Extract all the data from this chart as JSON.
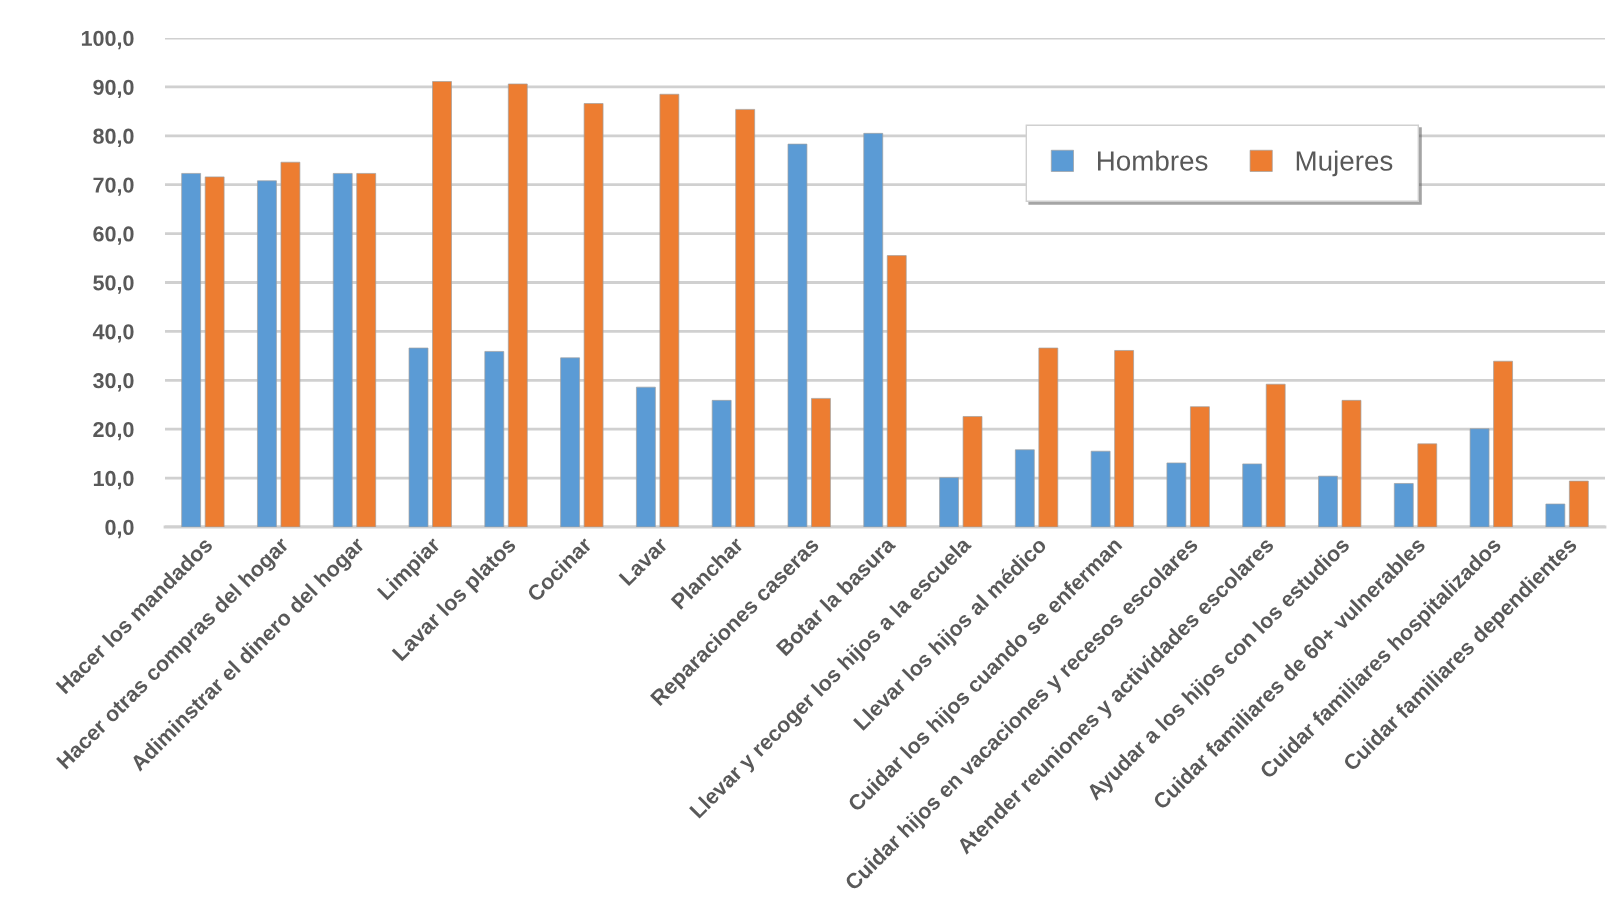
{
  "chart_data": {
    "type": "bar",
    "categories": [
      "Hacer los mandados",
      "Hacer otras compras del hogar",
      "Adiminstrar el dinero del hogar",
      "Limpiar",
      "Lavar los platos",
      "Cocinar",
      "Lavar",
      "Planchar",
      "Reparaciones caseras",
      "Botar la basura",
      "Llevar y recoger los hijos a la escuela",
      "Llevar los hijos al médico",
      "Cuidar los hijos cuando se enferman",
      "Cuidar hijos en vacaciones y recesos escolares",
      "Atender reuniones y actividades escolares",
      "Ayudar a los hijos con los estudios",
      "Cuidar familiares de 60+ vulnerables",
      "Cuidar familiares hospitalizados",
      "Cuidar familiares dependientes"
    ],
    "series": [
      {
        "name": "Hombres",
        "color": "#5b9bd5",
        "values": [
          72.3,
          70.8,
          72.3,
          36.6,
          35.9,
          34.6,
          28.6,
          25.9,
          78.3,
          80.5,
          10.1,
          15.8,
          15.5,
          13.1,
          12.9,
          10.4,
          8.9,
          20.1,
          4.7
        ]
      },
      {
        "name": "Mujeres",
        "color": "#ed7d31",
        "values": [
          71.6,
          74.6,
          72.3,
          91.1,
          90.6,
          86.6,
          88.5,
          85.4,
          26.3,
          55.5,
          22.6,
          36.6,
          36.1,
          24.6,
          29.2,
          25.9,
          17.0,
          33.9,
          9.4
        ]
      }
    ],
    "ylim": [
      0,
      100
    ],
    "yticks": [
      {
        "value": 0,
        "label": "0,0"
      },
      {
        "value": 10,
        "label": "10,0"
      },
      {
        "value": 20,
        "label": "20,0"
      },
      {
        "value": 30,
        "label": "30,0"
      },
      {
        "value": 40,
        "label": "40,0"
      },
      {
        "value": 50,
        "label": "50,0"
      },
      {
        "value": 60,
        "label": "60,0"
      },
      {
        "value": 70,
        "label": "70,0"
      },
      {
        "value": 80,
        "label": "80,0"
      },
      {
        "value": 90,
        "label": "90,0"
      },
      {
        "value": 100,
        "label": "100,0"
      }
    ],
    "grid": "y",
    "legend": "top right"
  }
}
